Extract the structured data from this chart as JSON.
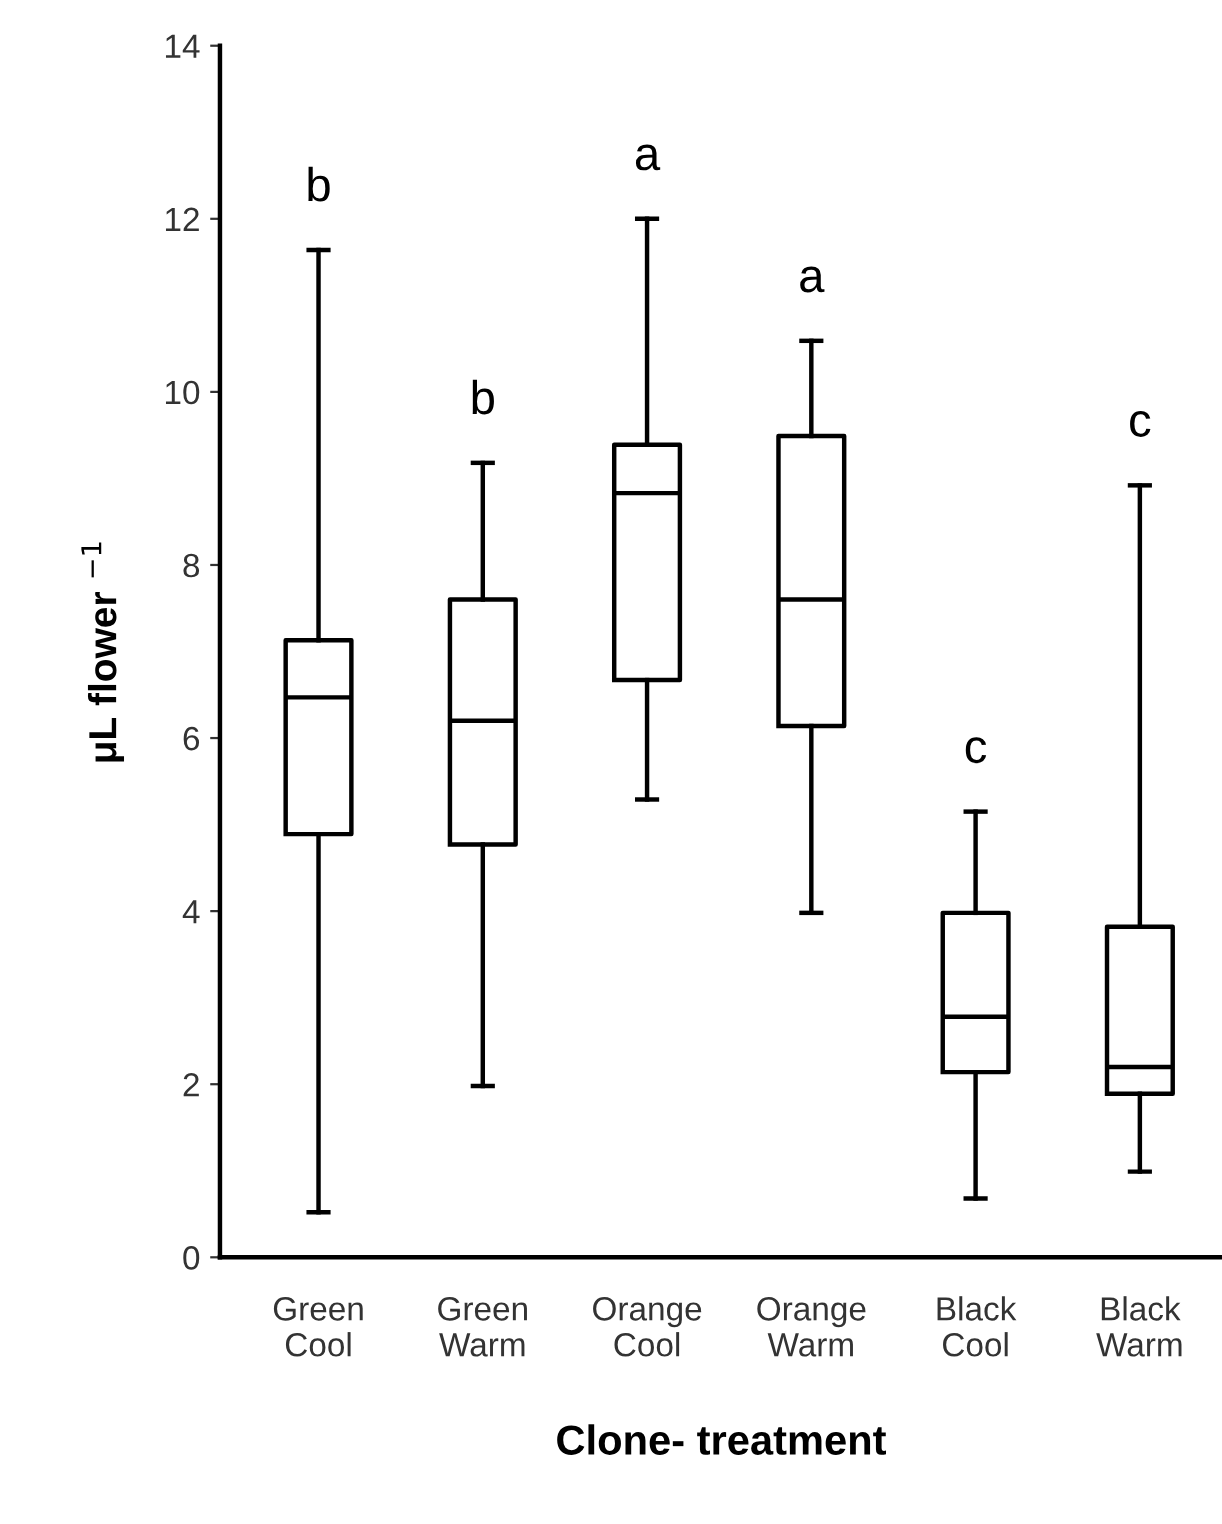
{
  "chart_data": {
    "type": "box",
    "xlabel": "Clone- treatment",
    "ylabel": "μL flower $^{−1}$",
    "categories": [
      "Green\nCool",
      "Green\nWarm",
      "Orange\nCool",
      "Orange\nWarm",
      "Black\nCool",
      "Black\nWarm"
    ],
    "boxes": [
      {
        "low": 0.52,
        "q1": 4.89,
        "median": 6.47,
        "q3": 7.13,
        "high": 11.64
      },
      {
        "low": 1.98,
        "q1": 4.77,
        "median": 6.2,
        "q3": 7.6,
        "high": 9.18
      },
      {
        "low": 5.29,
        "q1": 6.67,
        "median": 8.83,
        "q3": 9.39,
        "high": 12.0
      },
      {
        "low": 3.98,
        "q1": 6.14,
        "median": 7.6,
        "q3": 9.49,
        "high": 10.59
      },
      {
        "low": 0.68,
        "q1": 2.14,
        "median": 2.78,
        "q3": 3.98,
        "high": 5.15
      },
      {
        "low": 0.99,
        "q1": 1.89,
        "median": 2.2,
        "q3": 3.82,
        "high": 8.92
      }
    ],
    "ylim": [
      0,
      14
    ],
    "yticks": [
      0,
      2,
      4,
      6,
      8,
      10,
      12,
      14
    ],
    "grid": false,
    "annotations": [
      "b",
      "b",
      "a",
      "a",
      "c",
      "c"
    ]
  }
}
